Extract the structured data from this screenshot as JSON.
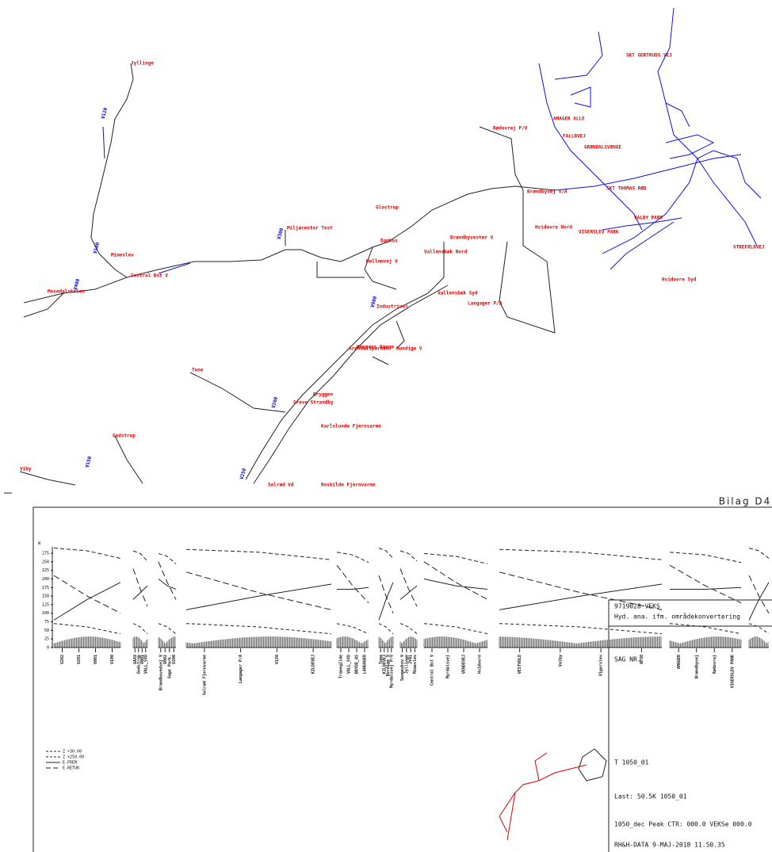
{
  "sheet_label": "Bilag D4",
  "map": {
    "labels": [
      "Jyllinge",
      "Tune",
      "Godstrup",
      "Viby",
      "Hvidovre Syd",
      "Brøndbyvester V",
      "Vallensbæk Syd",
      "Vallensbæk Nord",
      "Mellemvej V",
      "Glostrup",
      "Miljøcenter Tost",
      "Central Bst V",
      "Hundige V",
      "Greve Strandby",
      "Karlslunde Fjernvarme",
      "Solrød Vd",
      "SKT THOMAS RØD",
      "GRØNDALSVÆNGE",
      "FALLBVEJ",
      "Rødovrej P/V",
      "AMAGER ALLE",
      "SKT GERTRUDS VEJ",
      "VIGERSLEV PARK",
      "Brøndbyvej V/A",
      "Mosedalskolen",
      "Hvidovre Nord",
      "Langager P/A",
      "Industrivej",
      "Kongens Vænge",
      "Bryggen",
      "Damhus",
      "Roskilde Fjernvarme",
      "Grøndalsparken",
      "Mimeslev",
      "VALBY PARK",
      "STREFÆLDVEJ"
    ],
    "tags": [
      "V200",
      "V100",
      "V250",
      "V300",
      "V150",
      "V900",
      "V120",
      "V400"
    ]
  },
  "profile": {
    "axis_unit": "M",
    "yticks": [
      0,
      25,
      50,
      75,
      100,
      125,
      150,
      175,
      200,
      225,
      250,
      275
    ],
    "stations": [
      "V202",
      "V201",
      "V001",
      "V100",
      "GAXX",
      "Godstrup",
      "V001",
      "VALL_SYD",
      "Brandhovedvej V",
      "V002",
      "Sage Park.",
      "V200",
      "Solrød Fjernvarme",
      "Langager P/A",
      "V150",
      "KILDEVEJ",
      "Tranegilde",
      "VALL_SYD",
      "BRYDE_AS",
      "LANGAGER",
      "Tune",
      "KILDEVEJ",
      "Bordige V",
      "Myrdalsvej P/V",
      "Snogeskov V",
      "Jyllinge",
      "JY01",
      "Mimeslev",
      "Central Bst V",
      "Myrdalsvej",
      "VENDEVEJ",
      "Hvidovre",
      "VESTVOLD",
      "Valby",
      "Vigerslev",
      "AP30",
      "AMAGER",
      "Brøndbyvej",
      "Rødovrej",
      "VIGERSLEV PARK"
    ],
    "legend": [
      "Z +30.00",
      "Z +250.00",
      "E-FREM",
      "E-RETUR"
    ]
  },
  "title_block": {
    "project": "9719028 VEKS",
    "subtitle": "Hyd. ana. ifm. områdekonvertering",
    "case_label": "SAG NR.",
    "case": "T 1050_01",
    "load": "Last: 50.5K   1050_01",
    "peak": "1050_dec Peak CTR: 000.0 VEKSe 000.0",
    "footer": "RH&H-DATA   9-MAJ-2018  11.50.35"
  }
}
